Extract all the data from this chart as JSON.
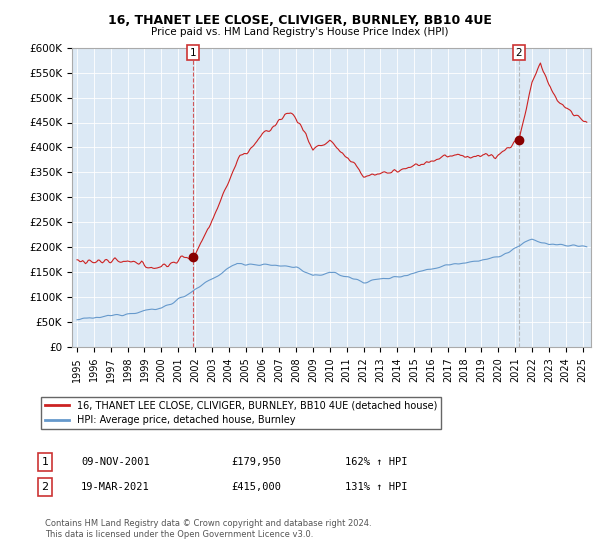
{
  "title": "16, THANET LEE CLOSE, CLIVIGER, BURNLEY, BB10 4UE",
  "subtitle": "Price paid vs. HM Land Registry's House Price Index (HPI)",
  "ylim": [
    0,
    600000
  ],
  "yticks": [
    0,
    50000,
    100000,
    150000,
    200000,
    250000,
    300000,
    350000,
    400000,
    450000,
    500000,
    550000,
    600000
  ],
  "ytick_labels": [
    "£0",
    "£50K",
    "£100K",
    "£150K",
    "£200K",
    "£250K",
    "£300K",
    "£350K",
    "£400K",
    "£450K",
    "£500K",
    "£550K",
    "£600K"
  ],
  "xlim_start": 1994.7,
  "xlim_end": 2025.5,
  "plot_bg_color": "#dce9f5",
  "fig_bg_color": "#ffffff",
  "grid_color": "#ffffff",
  "red_line_color": "#cc2222",
  "blue_line_color": "#6699cc",
  "marker1_x": 2001.86,
  "marker1_y": 179950,
  "marker2_x": 2021.21,
  "marker2_y": 415000,
  "sale1_date": "09-NOV-2001",
  "sale1_price": "£179,950",
  "sale1_hpi": "162% ↑ HPI",
  "sale2_date": "19-MAR-2021",
  "sale2_price": "£415,000",
  "sale2_hpi": "131% ↑ HPI",
  "legend_red": "16, THANET LEE CLOSE, CLIVIGER, BURNLEY, BB10 4UE (detached house)",
  "legend_blue": "HPI: Average price, detached house, Burnley",
  "footnote": "Contains HM Land Registry data © Crown copyright and database right 2024.\nThis data is licensed under the Open Government Licence v3.0."
}
